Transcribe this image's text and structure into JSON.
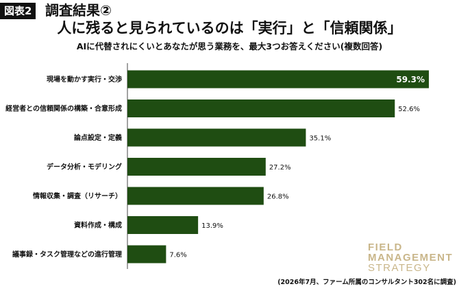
{
  "figure": {
    "tag": "図表2",
    "heading": "調査結果②",
    "title": "人に残ると見られているのは「実行」と「信頼関係」",
    "subtitle": "AIに代替されにくいとあなたが思う業務を、最大3つお答えください(複数回答)",
    "source": "(2026年7月、ファーム所属のコンサルタント302名に調査)"
  },
  "logo": {
    "line1": "FIELD",
    "line2": "MANAGEMENT",
    "line3": "STRATEGY"
  },
  "colors": {
    "bar": "#1f4d12",
    "axis": "#444444",
    "logo": "#c9b68a"
  },
  "chart_data": {
    "type": "bar",
    "orientation": "horizontal",
    "categories": [
      "現場を動かす実行・交渉",
      "経営者との信頼関係の構築・合意形成",
      "論点設定・定義",
      "データ分析・モデリング",
      "情報収集・調査（リサーチ）",
      "資料作成・構成",
      "議事録・タスク管理などの進行管理"
    ],
    "values": [
      59.3,
      52.6,
      35.1,
      27.2,
      26.8,
      13.9,
      7.6
    ],
    "value_labels": [
      "59.3%",
      "52.6%",
      "35.1%",
      "27.2%",
      "26.8%",
      "13.9%",
      "7.6%"
    ],
    "xlim": [
      0,
      60
    ],
    "grid": false,
    "legend": "none"
  }
}
